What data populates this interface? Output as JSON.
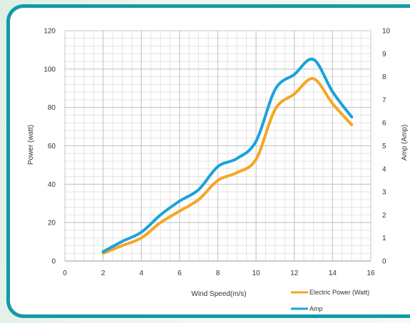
{
  "chart_data": {
    "type": "line",
    "x_label": "Wind Speed(m/s)",
    "y_label_left": "Power (watt)",
    "y_label_right": "Amp (Amp)",
    "x_range": [
      0,
      16
    ],
    "x_ticks": [
      0,
      2,
      4,
      6,
      8,
      10,
      12,
      14,
      16
    ],
    "y_left_range": [
      0,
      120
    ],
    "y_left_ticks": [
      0,
      20,
      40,
      60,
      80,
      100,
      120
    ],
    "y_right_range": [
      0,
      10
    ],
    "y_right_ticks": [
      0,
      1,
      2,
      3,
      4,
      5,
      6,
      7,
      8,
      9,
      10
    ],
    "grid": true,
    "legend_position": "bottom-right",
    "series": [
      {
        "name": "Electric Power (Watt)",
        "axis": "left",
        "color": "#f5a623",
        "x": [
          2,
          3,
          4,
          5,
          6,
          7,
          8,
          9,
          10,
          11,
          12,
          13,
          14,
          15
        ],
        "y": [
          4,
          8,
          12,
          20,
          26,
          32,
          42,
          46,
          53,
          79,
          87,
          95,
          82,
          71
        ]
      },
      {
        "name": "Amp",
        "axis": "right",
        "color": "#1ba2dc",
        "x": [
          2,
          3,
          4,
          5,
          6,
          7,
          8,
          9,
          10,
          11,
          12,
          13,
          14,
          15
        ],
        "y": [
          0.4,
          0.85,
          1.25,
          2.0,
          2.6,
          3.1,
          4.1,
          4.45,
          5.2,
          7.45,
          8.1,
          8.75,
          7.35,
          6.25
        ]
      }
    ]
  }
}
